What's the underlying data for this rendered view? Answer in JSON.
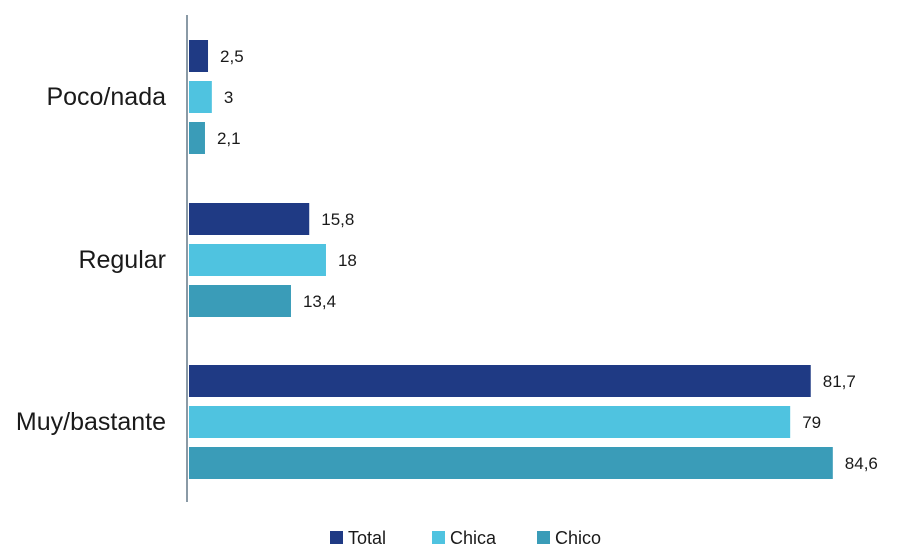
{
  "chart_data": {
    "type": "bar",
    "orientation": "horizontal",
    "categories": [
      "Poco/nada",
      "Regular",
      "Muy/bastante"
    ],
    "series": [
      {
        "name": "Total",
        "values": [
          2.5,
          15.8,
          81.7
        ],
        "labels": [
          "2,5",
          "15,8",
          "81,7"
        ],
        "color": "#1f3a84"
      },
      {
        "name": "Chica",
        "values": [
          3,
          18,
          79
        ],
        "labels": [
          "3",
          "18",
          "79"
        ],
        "color": "#4fc3e0"
      },
      {
        "name": "Chico",
        "values": [
          2.1,
          13.4,
          84.6
        ],
        "labels": [
          "2,1",
          "13,4",
          "84,6"
        ],
        "color": "#3a9cb8"
      }
    ],
    "xlim": [
      0,
      100
    ],
    "grid": false,
    "legend_position": "bottom"
  }
}
